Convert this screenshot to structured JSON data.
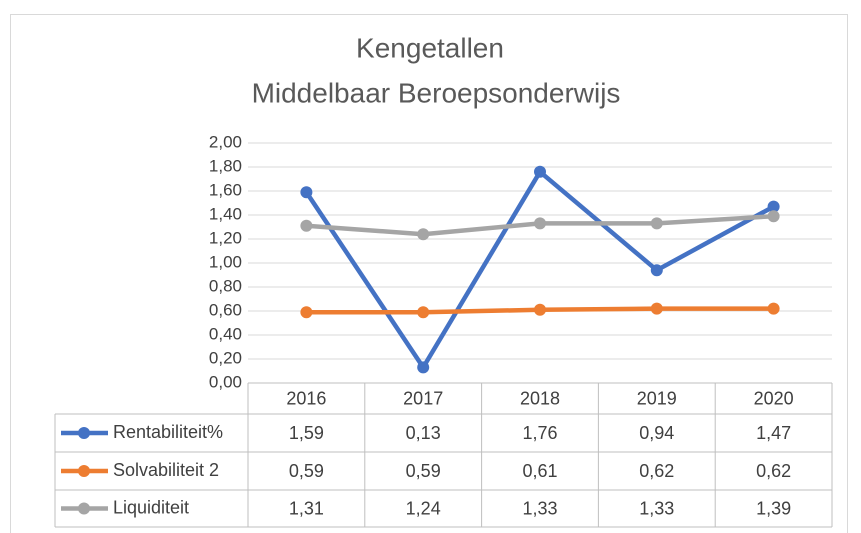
{
  "chart_data": {
    "type": "line",
    "title": "Kengetallen",
    "subtitle": "Middelbaar Beroepsonderwijs",
    "categories": [
      "2016",
      "2017",
      "2018",
      "2019",
      "2020"
    ],
    "series": [
      {
        "name": "Rentabiliteit%",
        "color": "#4472c4",
        "values": [
          1.59,
          0.13,
          1.76,
          0.94,
          1.47
        ],
        "value_labels": [
          "1,59",
          "0,13",
          "1,76",
          "0,94",
          "1,47"
        ]
      },
      {
        "name": "Solvabiliteit 2",
        "color": "#ed7d31",
        "values": [
          0.59,
          0.59,
          0.61,
          0.62,
          0.62
        ],
        "value_labels": [
          "0,59",
          "0,59",
          "0,61",
          "0,62",
          "0,62"
        ]
      },
      {
        "name": "Liquiditeit",
        "color": "#a5a5a5",
        "values": [
          1.31,
          1.24,
          1.33,
          1.33,
          1.39
        ],
        "value_labels": [
          "1,31",
          "1,24",
          "1,33",
          "1,33",
          "1,39"
        ]
      }
    ],
    "ylim": [
      0,
      2
    ],
    "yticks": [
      {
        "value": 0,
        "label": "0,00"
      },
      {
        "value": 0.2,
        "label": "0,20"
      },
      {
        "value": 0.4,
        "label": "0,40"
      },
      {
        "value": 0.6,
        "label": "0,60"
      },
      {
        "value": 0.8,
        "label": "0,80"
      },
      {
        "value": 1,
        "label": "1,00"
      },
      {
        "value": 1.2,
        "label": "1,20"
      },
      {
        "value": 1.4,
        "label": "1,40"
      },
      {
        "value": 1.6,
        "label": "1,60"
      },
      {
        "value": 1.8,
        "label": "1,80"
      },
      {
        "value": 2,
        "label": "2,00"
      }
    ],
    "grid": true,
    "data_table": true
  }
}
